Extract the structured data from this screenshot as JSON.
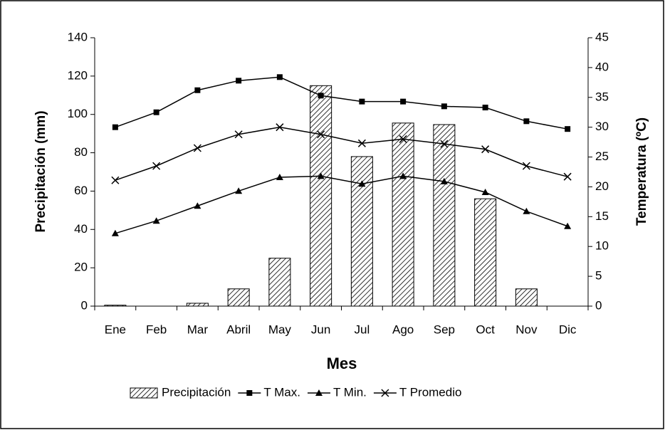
{
  "chart_data": {
    "type": "bar",
    "x_label": "Mes",
    "y_label": "Precipitación (mm)",
    "y2_label": "Temperatura (ºC)",
    "categories": [
      "Ene",
      "Feb",
      "Mar",
      "Abril",
      "May",
      "Jun",
      "Jul",
      "Ago",
      "Sep",
      "Oct",
      "Nov",
      "Dic"
    ],
    "series": [
      {
        "name": "Precipitación",
        "type": "bar",
        "color": "#000000",
        "values": [
          0.5,
          0,
          1.5,
          9,
          25,
          115,
          78,
          95.5,
          94.7,
          56,
          9,
          0
        ]
      },
      {
        "name": "T Max.",
        "type": "line",
        "marker": "square",
        "color": "#000000",
        "axis": "y2",
        "values": [
          30.0,
          32.5,
          36.2,
          37.8,
          38.4,
          35.3,
          34.3,
          34.3,
          33.5,
          33.3,
          31.0,
          29.7
        ]
      },
      {
        "name": "T Min.",
        "type": "line",
        "marker": "triangle",
        "color": "#000000",
        "axis": "y2",
        "values": [
          12.2,
          14.3,
          16.8,
          19.3,
          21.6,
          21.8,
          20.5,
          21.8,
          20.9,
          19.1,
          15.9,
          13.4
        ]
      },
      {
        "name": "T Promedio",
        "type": "line",
        "marker": "x",
        "color": "#000000",
        "axis": "y2",
        "values": [
          21.1,
          23.5,
          26.5,
          28.8,
          30.0,
          28.8,
          27.3,
          28.0,
          27.2,
          26.3,
          23.5,
          21.7
        ]
      }
    ],
    "ylim": [
      0,
      140
    ],
    "yticks": [
      0,
      20,
      40,
      60,
      80,
      100,
      120,
      140
    ],
    "y2lim": [
      0,
      45
    ],
    "y2ticks": [
      0,
      5,
      10,
      15,
      20,
      25,
      30,
      35,
      40,
      45
    ],
    "legend": "bottom"
  }
}
